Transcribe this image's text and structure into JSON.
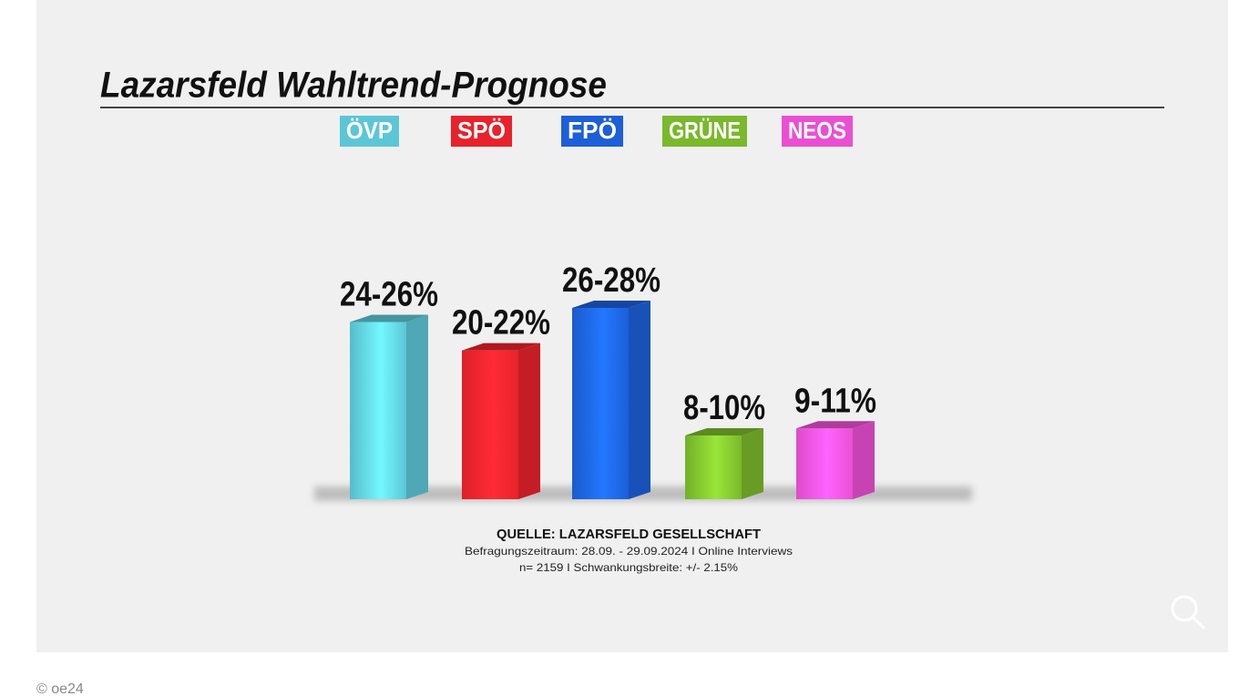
{
  "chart_data": {
    "type": "bar",
    "title": "Lazarsfeld Wahltrend-Prognose",
    "categories": [
      "ÖVP",
      "SPÖ",
      "FPÖ",
      "GRÜNE",
      "NEOS"
    ],
    "values": [
      25,
      21,
      27,
      9,
      10
    ],
    "value_labels": [
      "24-26%",
      "20-22%",
      "26-28%",
      "8-10%",
      "9-11%"
    ],
    "colors": [
      "#5cc6d6",
      "#e8222b",
      "#1c5fd8",
      "#7ab82c",
      "#ea4fd3"
    ],
    "source": {
      "title": "QUELLE: LAZARSFELD GESELLSCHAFT",
      "lines": [
        "Befragungszeitraum: 28.09. - 29.09.2024 I Online Interviews",
        "n= 2159 I Schwankungsbreite: +/- 2.15%"
      ]
    }
  },
  "credit": "© oe24"
}
